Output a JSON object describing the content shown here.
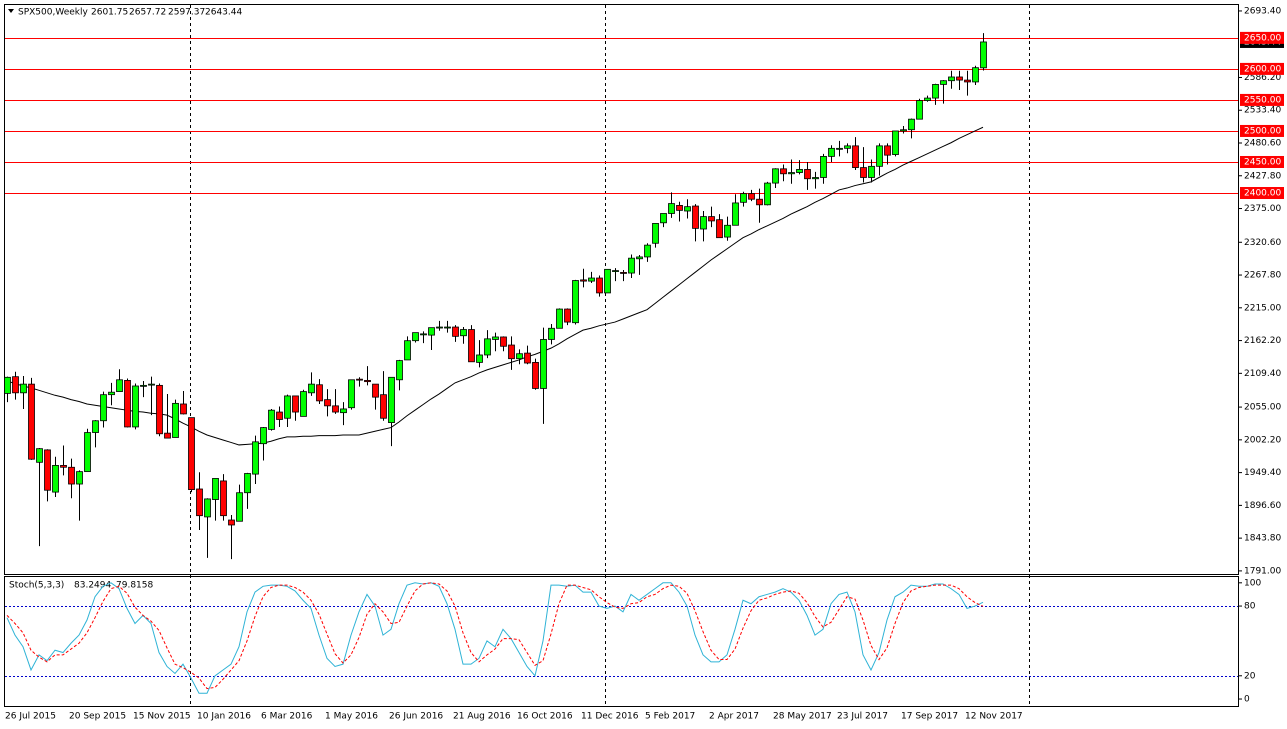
{
  "chart_data": [
    {
      "type": "candlestick",
      "title": "SPX500,Weekly",
      "x": [
        "26 Jul 2015",
        null,
        null,
        null,
        null,
        null,
        null,
        null,
        "20 Sep 2015",
        null,
        null,
        null,
        null,
        null,
        null,
        null,
        "15 Nov 2015",
        null,
        null,
        null,
        null,
        null,
        null,
        null,
        "10 Jan 2016",
        null,
        null,
        null,
        null,
        null,
        null,
        null,
        "6 Mar 2016",
        null,
        null,
        null,
        null,
        null,
        null,
        null,
        "1 May 2016",
        null,
        null,
        null,
        null,
        null,
        null,
        null,
        "26 Jun 2016",
        null,
        null,
        null,
        null,
        null,
        null,
        null,
        "21 Aug 2016",
        null,
        null,
        null,
        null,
        null,
        null,
        null,
        "16 Oct 2016",
        null,
        null,
        null,
        null,
        null,
        null,
        null,
        "11 Dec 2016",
        null,
        null,
        null,
        null,
        null,
        null,
        null,
        "5 Feb 2017",
        null,
        null,
        null,
        null,
        null,
        null,
        null,
        "2 Apr 2017",
        null,
        null,
        null,
        null,
        null,
        null,
        null,
        "28 May 2017",
        null,
        null,
        null,
        null,
        null,
        null,
        null,
        "23 Jul 2017",
        null,
        null,
        null,
        null,
        null,
        null,
        null,
        "17 Sep 2017",
        null,
        null,
        null,
        null,
        null,
        null,
        null,
        "12 Nov 2017",
        null,
        null
      ],
      "open": [
        2077,
        2104,
        2078,
        2092,
        1966,
        1986,
        1918,
        1961,
        1958,
        1931,
        1951,
        2014,
        2033,
        2075,
        2080,
        2098,
        2023,
        2089,
        2091,
        2090,
        2013,
        2006,
        2060,
        2038,
        1923,
        1878,
        1906,
        1936,
        1873,
        1871,
        1917,
        1947,
        1996,
        2019,
        2047,
        2037,
        2073,
        2040,
        2078,
        2091,
        2067,
        2057,
        2046,
        2054,
        2100,
        2098,
        2092,
        2075,
        2030,
        2099,
        2131,
        2162,
        2173,
        2171,
        2183,
        2184,
        2184,
        2170,
        2180,
        2127,
        2139,
        2164,
        2168,
        2155,
        2133,
        2142,
        2127,
        2085,
        2164,
        2182,
        2213,
        2191,
        2260,
        2258,
        2263,
        2239,
        2274,
        2272,
        2271,
        2294,
        2297,
        2319,
        2352,
        2367,
        2380,
        2371,
        2379,
        2342,
        2362,
        2357,
        2329,
        2348,
        2385,
        2399,
        2390,
        2381,
        2416,
        2439,
        2431,
        2433,
        2438,
        2423,
        2425,
        2459,
        2472,
        2472,
        2476,
        2441,
        2425,
        2443,
        2476,
        2462,
        2500,
        2502,
        2519,
        2549,
        2553,
        2575,
        2581,
        2587,
        2582,
        2579,
        2601.75
      ],
      "high": [
        2104,
        2112,
        2105,
        2102,
        1989,
        1987,
        1975,
        1993,
        1972,
        1953,
        2020,
        2034,
        2080,
        2094,
        2116,
        2101,
        2093,
        2097,
        2104,
        2093,
        2076,
        2067,
        2081,
        2038,
        1950,
        1908,
        1940,
        1947,
        1881,
        1930,
        1949,
        2009,
        2023,
        2052,
        2056,
        2075,
        2073,
        2083,
        2111,
        2100,
        2084,
        2084,
        2063,
        2094,
        2103,
        2121,
        2092,
        2113,
        2103,
        2131,
        2169,
        2175,
        2177,
        2183,
        2194,
        2194,
        2187,
        2184,
        2187,
        2163,
        2179,
        2175,
        2169,
        2169,
        2148,
        2154,
        2133,
        2183,
        2189,
        2214,
        2214,
        2260,
        2278,
        2273,
        2267,
        2277,
        2279,
        2276,
        2301,
        2300,
        2319,
        2351,
        2367,
        2401,
        2386,
        2390,
        2382,
        2371,
        2378,
        2366,
        2362,
        2398,
        2402,
        2405,
        2407,
        2418,
        2440,
        2446,
        2454,
        2453,
        2450,
        2434,
        2463,
        2477,
        2484,
        2480,
        2490,
        2474,
        2454,
        2480,
        2480,
        2500,
        2508,
        2520,
        2552,
        2557,
        2576,
        2582,
        2597,
        2597,
        2597,
        2605,
        2657.72
      ],
      "low": [
        2063,
        2067,
        2052,
        1970,
        1831,
        1903,
        1910,
        1945,
        1908,
        1872,
        1951,
        1990,
        2022,
        2058,
        2080,
        2022,
        2019,
        2071,
        2042,
        2008,
        2005,
        2006,
        2043,
        1918,
        1857,
        1812,
        1872,
        1872,
        1810,
        1871,
        1891,
        1931,
        1969,
        2017,
        2023,
        2023,
        2033,
        2040,
        2073,
        2060,
        2040,
        2044,
        2026,
        2051,
        2088,
        2090,
        2051,
        2033,
        1992,
        2082,
        2131,
        2159,
        2158,
        2147,
        2178,
        2175,
        2160,
        2157,
        2128,
        2119,
        2134,
        2145,
        2145,
        2115,
        2124,
        2124,
        2083,
        2028,
        2156,
        2182,
        2187,
        2188,
        2248,
        2255,
        2233,
        2239,
        2258,
        2258,
        2263,
        2268,
        2289,
        2312,
        2345,
        2360,
        2354,
        2359,
        2322,
        2322,
        2345,
        2328,
        2323,
        2348,
        2378,
        2387,
        2352,
        2380,
        2408,
        2419,
        2415,
        2430,
        2405,
        2407,
        2415,
        2450,
        2459,
        2464,
        2437,
        2417,
        2417,
        2428,
        2446,
        2459,
        2496,
        2488,
        2519,
        2547,
        2542,
        2544,
        2568,
        2566,
        2557,
        2574,
        2597.37
      ],
      "close": [
        2103,
        2078,
        2092,
        1971,
        1988,
        1921,
        1961,
        1958,
        1931,
        1951,
        2014,
        2033,
        2075,
        2079,
        2099,
        2023,
        2089,
        2090,
        2092,
        2012,
        2005,
        2061,
        2044,
        1922,
        1880,
        1907,
        1940,
        1880,
        1865,
        1917,
        1948,
        1999,
        2022,
        2050,
        2035,
        2073,
        2047,
        2080,
        2092,
        2065,
        2057,
        2047,
        2052,
        2099,
        2099,
        2096,
        2071,
        2037,
        2103,
        2130,
        2162,
        2175,
        2173,
        2183,
        2184,
        2184,
        2169,
        2180,
        2128,
        2139,
        2165,
        2168,
        2153,
        2133,
        2141,
        2126,
        2085,
        2164,
        2182,
        2213,
        2192,
        2259,
        2258,
        2263,
        2239,
        2277,
        2275,
        2271,
        2295,
        2297,
        2316,
        2351,
        2367,
        2383,
        2372,
        2378,
        2343,
        2362,
        2355,
        2328,
        2348,
        2384,
        2399,
        2390,
        2381,
        2416,
        2439,
        2431,
        2433,
        2438,
        2423,
        2425,
        2459,
        2472,
        2472,
        2476,
        2441,
        2425,
        2443,
        2476,
        2461,
        2500,
        2502,
        2519,
        2549,
        2553,
        2575,
        2581,
        2587,
        2582,
        2579,
        2602,
        2643.44
      ],
      "up_color": "#00ff00",
      "down_color": "#ff0000",
      "ma": {
        "color": "#000000",
        "values": [
          2097,
          2093,
          2089,
          2086,
          2082,
          2078,
          2074,
          2071,
          2067,
          2064,
          2060,
          2058,
          2056,
          2054,
          2052,
          2050,
          2048,
          2047,
          2045,
          2044,
          2042,
          2036,
          2029,
          2023,
          2016,
          2010,
          2006,
          2002,
          1998,
          1994,
          1995,
          1996,
          1997,
          2000,
          2004,
          2007,
          2007,
          2008,
          2008,
          2009,
          2009,
          2009,
          2010,
          2010,
          2010,
          2013,
          2016,
          2019,
          2022,
          2031,
          2041,
          2050,
          2059,
          2068,
          2076,
          2085,
          2094,
          2099,
          2104,
          2110,
          2115,
          2119,
          2123,
          2127,
          2131,
          2136,
          2140,
          2145,
          2150,
          2157,
          2165,
          2172,
          2179,
          2182,
          2186,
          2189,
          2192,
          2197,
          2202,
          2207,
          2212,
          2222,
          2232,
          2242,
          2252,
          2262,
          2272,
          2282,
          2292,
          2301,
          2310,
          2319,
          2328,
          2334,
          2341,
          2347,
          2353,
          2359,
          2366,
          2372,
          2378,
          2385,
          2391,
          2398,
          2405,
          2408,
          2412,
          2415,
          2418,
          2425,
          2432,
          2438,
          2445,
          2451,
          2457,
          2463,
          2469,
          2475,
          2481,
          2488,
          2494,
          2500,
          2506
        ]
      },
      "levels": [
        {
          "value": 2650,
          "label": "2650.00"
        },
        {
          "value": 2600,
          "label": "2600.00"
        },
        {
          "value": 2550,
          "label": "2550.00"
        },
        {
          "value": 2500,
          "label": "2500.00"
        },
        {
          "value": 2450,
          "label": "2450.00"
        },
        {
          "value": 2400,
          "label": "2400.00"
        }
      ],
      "level_color": "#ff0000",
      "ylim": [
        1786,
        2703
      ],
      "yticks": [
        {
          "value": 2693.4,
          "label": "2693.40"
        },
        {
          "value": 2586.2,
          "label": "2586.20"
        },
        {
          "value": 2533.4,
          "label": "2533.40"
        },
        {
          "value": 2480.6,
          "label": "2480.60"
        },
        {
          "value": 2427.8,
          "label": "2427.80"
        },
        {
          "value": 2375,
          "label": "2375.00"
        },
        {
          "value": 2320.6,
          "label": "2320.60"
        },
        {
          "value": 2267.8,
          "label": "2267.80"
        },
        {
          "value": 2215,
          "label": "2215.00"
        },
        {
          "value": 2162.2,
          "label": "2162.20"
        },
        {
          "value": 2109.4,
          "label": "2109.40"
        },
        {
          "value": 2055,
          "label": "2055.00"
        },
        {
          "value": 2002.2,
          "label": "2002.20"
        },
        {
          "value": 1949.4,
          "label": "1949.40"
        },
        {
          "value": 1896.6,
          "label": "1896.60"
        },
        {
          "value": 1843.8,
          "label": "1843.80"
        },
        {
          "value": 1791,
          "label": "1791.00"
        }
      ]
    },
    {
      "type": "line",
      "title": "Stoch(5,3,3)",
      "series": [
        {
          "color": "#2fb3d6",
          "dashed": false,
          "values": [
            70,
            55,
            45,
            25,
            38,
            33,
            42,
            40,
            48,
            55,
            68,
            88,
            97,
            100,
            95,
            78,
            65,
            72,
            65,
            40,
            28,
            22,
            30,
            18,
            5,
            5,
            20,
            25,
            30,
            45,
            75,
            92,
            97,
            98,
            98,
            97,
            93,
            85,
            78,
            55,
            35,
            28,
            30,
            55,
            75,
            90,
            80,
            55,
            60,
            82,
            98,
            100,
            99,
            100,
            97,
            82,
            60,
            30,
            30,
            35,
            50,
            45,
            60,
            52,
            40,
            28,
            20,
            50,
            98,
            98,
            97,
            98,
            92,
            92,
            80,
            78,
            80,
            75,
            90,
            85,
            90,
            95,
            100,
            100,
            92,
            80,
            55,
            38,
            32,
            32,
            38,
            60,
            85,
            82,
            88,
            90,
            92,
            95,
            92,
            85,
            72,
            55,
            60,
            82,
            90,
            92,
            75,
            38,
            25,
            40,
            68,
            88,
            92,
            98,
            97,
            97,
            99,
            99,
            95,
            90,
            78,
            80,
            83.2494
          ]
        },
        {
          "color": "#ff0000",
          "dashed": true,
          "values": [
            72,
            65,
            57,
            42,
            36,
            32,
            38,
            38,
            43,
            48,
            57,
            70,
            84,
            95,
            97,
            91,
            79,
            72,
            67,
            59,
            44,
            30,
            27,
            23,
            18,
            9,
            10,
            17,
            25,
            33,
            50,
            71,
            88,
            96,
            98,
            98,
            96,
            92,
            85,
            73,
            56,
            39,
            31,
            38,
            53,
            73,
            82,
            75,
            65,
            66,
            80,
            93,
            99,
            100,
            99,
            93,
            80,
            57,
            40,
            32,
            38,
            43,
            52,
            52,
            51,
            40,
            29,
            33,
            56,
            82,
            98,
            98,
            96,
            94,
            88,
            83,
            79,
            78,
            82,
            83,
            88,
            90,
            95,
            98,
            97,
            91,
            76,
            58,
            42,
            34,
            34,
            43,
            61,
            76,
            85,
            87,
            90,
            92,
            93,
            91,
            83,
            71,
            62,
            66,
            77,
            88,
            86,
            68,
            46,
            34,
            44,
            65,
            83,
            93,
            96,
            97,
            98,
            98,
            98,
            95,
            88,
            83,
            79.8158
          ]
        }
      ],
      "levels": [
        80,
        20
      ],
      "level_color": "#0000cc",
      "ylim": [
        -6,
        105
      ],
      "yticks": [
        100,
        80,
        20,
        0
      ]
    }
  ]
}
